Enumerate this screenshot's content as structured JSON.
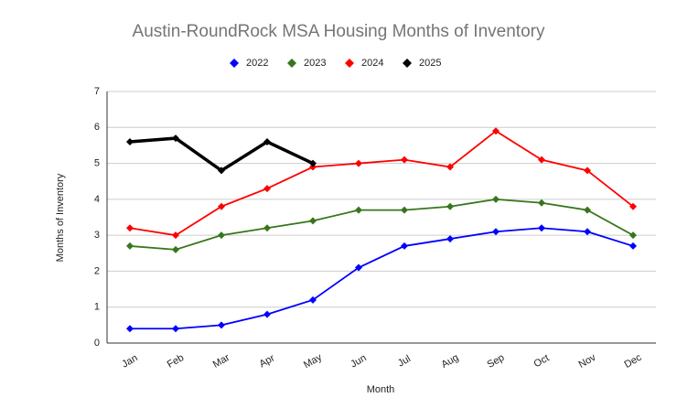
{
  "chart_data": {
    "type": "line",
    "title": "Austin-RoundRock MSA Housing Months of Inventory",
    "x_label": "Month",
    "y_label": "Months of Inventory",
    "categories": [
      "Jan",
      "Feb",
      "Mar",
      "Apr",
      "May",
      "Jun",
      "Jul",
      "Aug",
      "Sep",
      "Oct",
      "Nov",
      "Dec"
    ],
    "series": [
      {
        "name": "2022",
        "color": "#0000ff",
        "values": [
          0.4,
          0.4,
          0.5,
          0.8,
          1.2,
          2.1,
          2.7,
          2.9,
          3.1,
          3.2,
          3.1,
          2.7
        ]
      },
      {
        "name": "2023",
        "color": "#38761d",
        "values": [
          2.7,
          2.6,
          3.0,
          3.2,
          3.4,
          3.7,
          3.7,
          3.8,
          4.0,
          3.9,
          3.7,
          3.0
        ]
      },
      {
        "name": "2024",
        "color": "#ff0000",
        "values": [
          3.2,
          3.0,
          3.8,
          4.3,
          4.9,
          5.0,
          5.1,
          4.9,
          5.9,
          5.1,
          4.8,
          3.8
        ]
      },
      {
        "name": "2025",
        "color": "#000000",
        "values": [
          5.6,
          5.7,
          4.8,
          5.6,
          5.0,
          null,
          null,
          null,
          null,
          null,
          null,
          null
        ]
      }
    ],
    "ylim": [
      0,
      7
    ],
    "yticks": [
      0,
      1,
      2,
      3,
      4,
      5,
      6,
      7
    ],
    "grid": true,
    "legend": "top"
  }
}
